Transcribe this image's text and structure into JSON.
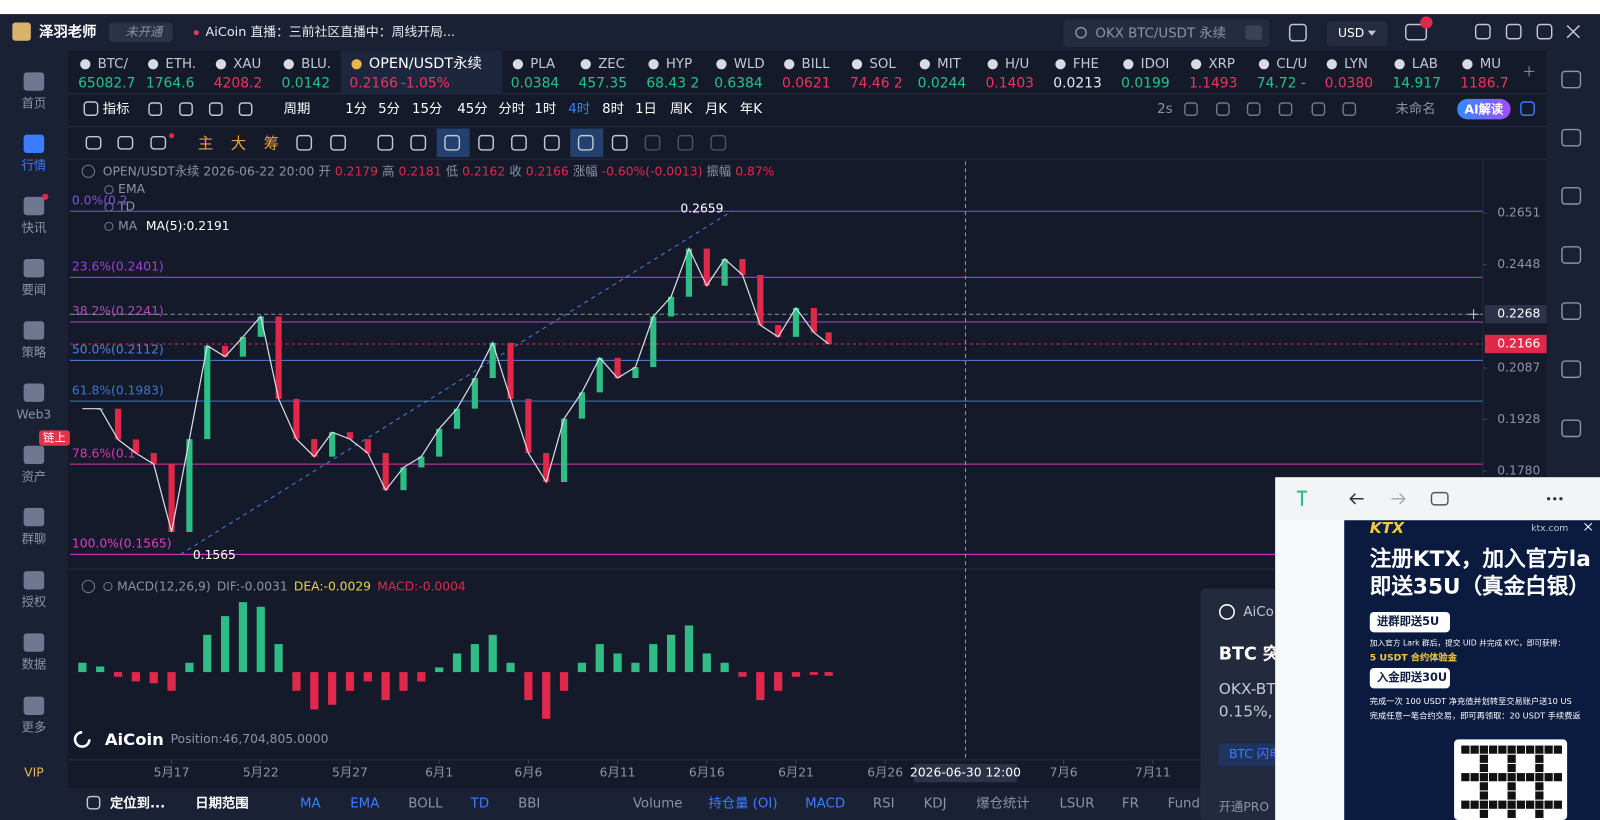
{
  "top_bar": {
    "user": "泽羽老师",
    "badge": "未开通",
    "live": "AiCoin 直播：三前社区直播中：周线开局...",
    "search": "OKX BTC/USDT 永续",
    "currency": "USD"
  },
  "tickers": [
    {
      "name": "BTC/",
      "price": "65082.7",
      "color": "#27c28a"
    },
    {
      "name": "ETH.",
      "price": "1764.6",
      "color": "#27c28a"
    },
    {
      "name": "XAU",
      "price": "4208.2",
      "color": "#f0345a"
    },
    {
      "name": "BLU.",
      "price": "0.0142",
      "color": "#27c28a"
    },
    {
      "name": "OPEN/USDT永续",
      "price": "0.2166",
      "change": "-1.05%",
      "color": "#f0345a",
      "active": true
    },
    {
      "name": "PLA",
      "price": "0.0384",
      "color": "#27c28a"
    },
    {
      "name": "ZEC",
      "price": "457.35",
      "color": "#27c28a"
    },
    {
      "name": "HYP",
      "price": "68.43 2",
      "color": "#27c28a"
    },
    {
      "name": "WLD",
      "price": "0.6384",
      "color": "#27c28a"
    },
    {
      "name": "BILL",
      "price": "0.0621",
      "color": "#f0345a"
    },
    {
      "name": "SOL",
      "price": "74.46 2",
      "color": "#f0345a"
    },
    {
      "name": "MIT",
      "price": "0.0244",
      "color": "#27c28a"
    },
    {
      "name": "H/U",
      "price": "0.1403",
      "color": "#f0345a"
    },
    {
      "name": "FHE",
      "price": "0.0213",
      "color": "#e8eaf0"
    },
    {
      "name": "IDOI",
      "price": "0.0199",
      "color": "#27c28a"
    },
    {
      "name": "XRP",
      "price": "1.1493",
      "color": "#f0345a"
    },
    {
      "name": "CL/U",
      "price": "74.72 -",
      "color": "#27c28a"
    },
    {
      "name": "LYN",
      "price": "0.0380",
      "color": "#f0345a"
    },
    {
      "name": "LAB",
      "price": "14.917",
      "color": "#27c28a"
    },
    {
      "name": "MU",
      "price": "1186.7",
      "color": "#f0345a"
    }
  ],
  "sidebar": {
    "items": [
      "首页",
      "行情",
      "快讯",
      "要闻",
      "策略",
      "Web3",
      "资产",
      "群聊",
      "授权",
      "数据",
      "更多",
      "VIP"
    ],
    "active": "行情",
    "badge": "链上"
  },
  "toolbar": {
    "indicator": "指标",
    "period": "周期",
    "intervals": [
      "1分",
      "5分",
      "15分",
      "45分",
      "分时",
      "1时",
      "4时",
      "8时",
      "1日",
      "周K",
      "月K",
      "年K"
    ],
    "active_interval": "4时",
    "refresh": "2s",
    "layout": "未命名",
    "ai": "AI解读"
  },
  "draw_tools": [
    "主",
    "大",
    "筹"
  ],
  "ohlc_info": [
    {
      "text": "OPEN/USDT永续 2026-06-22 20:00",
      "color": "#8b93a7"
    },
    {
      "text": "开",
      "color": "#8b93a7"
    },
    {
      "text": "0.2179",
      "color": "#e0294a"
    },
    {
      "text": "高",
      "color": "#8b93a7"
    },
    {
      "text": "0.2181",
      "color": "#e0294a"
    },
    {
      "text": "低",
      "color": "#8b93a7"
    },
    {
      "text": "0.2162",
      "color": "#e0294a"
    },
    {
      "text": "收",
      "color": "#8b93a7"
    },
    {
      "text": "0.2166",
      "color": "#e0294a"
    },
    {
      "text": "涨幅",
      "color": "#8b93a7"
    },
    {
      "text": "-0.60%(-0.0013)",
      "color": "#e0294a"
    },
    {
      "text": "振幅",
      "color": "#8b93a7"
    },
    {
      "text": "0.87%",
      "color": "#e0294a"
    }
  ],
  "overlays": [
    "EMA",
    "TD",
    "MA"
  ],
  "ma_value": "MA(5):0.2191",
  "macd_info": [
    {
      "text": "MACD(12,26,9)",
      "color": "#8b93a7"
    },
    {
      "text": "DIF:-0.0031",
      "color": "#8b93a7"
    },
    {
      "text": "DEA:-0.0029",
      "color": "#e8d44d"
    },
    {
      "text": "MACD:-0.0004",
      "color": "#e0294a"
    }
  ],
  "watermark": "AiCoin",
  "position": "Position:46,704,805.0000",
  "chart_data": {
    "type": "line",
    "log_scale": true,
    "color": "#d9dce3",
    "up_color": "#2ebd85",
    "down_color": "#e0294a",
    "x": [
      -5,
      -4,
      -3,
      -2,
      -1,
      0,
      1,
      2,
      3,
      4,
      5,
      6,
      7,
      8,
      9,
      10,
      11,
      12,
      13,
      14,
      15,
      16,
      17,
      18,
      19,
      20,
      21,
      22,
      23,
      24,
      25,
      26,
      27,
      28,
      29,
      30,
      31,
      32,
      33,
      34,
      35,
      36,
      36.83
    ],
    "values": [
      0.196,
      0.196,
      0.1869,
      0.183,
      0.1799,
      0.162,
      0.187,
      0.216,
      0.2124,
      0.219,
      0.226,
      0.199,
      0.187,
      0.182,
      0.189,
      0.187,
      0.183,
      0.1728,
      0.179,
      0.182,
      0.19,
      0.196,
      0.2055,
      0.217,
      0.199,
      0.183,
      0.175,
      0.193,
      0.201,
      0.212,
      0.2055,
      0.209,
      0.226,
      0.233,
      0.251,
      0.237,
      0.247,
      0.241,
      0.223,
      0.219,
      0.229,
      0.2205,
      0.2166
    ],
    "xlim": [
      -5.7,
      73.5
    ],
    "ylim": [
      0.1537,
      0.2873
    ],
    "xticks": [
      {
        "value": 0,
        "label": "5月17"
      },
      {
        "value": 5,
        "label": "5月22"
      },
      {
        "value": 10,
        "label": "5月27"
      },
      {
        "value": 15,
        "label": "6月1"
      },
      {
        "value": 20,
        "label": "6月6"
      },
      {
        "value": 25,
        "label": "6月11"
      },
      {
        "value": 30,
        "label": "6月16"
      },
      {
        "value": 35,
        "label": "6月21"
      },
      {
        "value": 40,
        "label": "6月26"
      },
      {
        "value": 50,
        "label": "7月6"
      },
      {
        "value": 55,
        "label": "7月11"
      }
    ],
    "yticks": [
      0.2651,
      0.2448,
      0.2087,
      0.1928,
      {
        "value": 0.178,
        "label": "0.1780"
      }
    ],
    "fib_levels": [
      {
        "label": "0.0%(0.2",
        "value": 0.2659,
        "color": "#7b55d6"
      },
      {
        "label": "23.6%(0.2401)",
        "value": 0.2401,
        "color": "#9a44d8"
      },
      {
        "label": "38.2%(0.2241)",
        "value": 0.2241,
        "color": "#b04bb8"
      },
      {
        "label": "50.0%(0.2112)",
        "value": 0.2112,
        "color": "#4f7fd8"
      },
      {
        "label": "61.8%(0.1983)",
        "value": 0.1983,
        "color": "#3f74c9"
      },
      {
        "label": "78.6%(0.1",
        "value": 0.1799,
        "color": "#d23aa8"
      },
      {
        "label": "100.0%(0.1565)",
        "value": 0.1565,
        "color": "#e03cbf"
      }
    ],
    "high_low": [
      {
        "x": 31.4,
        "value": 0.2659
      },
      {
        "x": 0.5,
        "value": 0.1565
      }
    ],
    "last_price": 0.2166,
    "crosshair": {
      "x": 44.5,
      "x_label": "2026-06-30 12:00",
      "value": 0.2268
    },
    "macd": {
      "values": [
        0.001,
        0.0006,
        -0.0005,
        -0.001,
        -0.0012,
        -0.002,
        0.001,
        0.004,
        0.006,
        0.0075,
        0.007,
        0.003,
        -0.002,
        -0.004,
        -0.0035,
        -0.002,
        -0.001,
        -0.003,
        -0.002,
        -0.001,
        0.0005,
        0.002,
        0.003,
        0.004,
        0.001,
        -0.003,
        -0.005,
        -0.002,
        0.001,
        0.003,
        0.002,
        0.001,
        0.003,
        0.004,
        0.005,
        0.002,
        0.001,
        -0.0005,
        -0.003,
        -0.002,
        -0.0005,
        -0.0003,
        -0.0004
      ],
      "ylim": [
        -0.0094,
        0.0106
      ]
    }
  },
  "bottom_bar": [
    {
      "text": "定位到...",
      "color": "#ffffff"
    },
    {
      "text": "日期范围",
      "color": "#ffffff"
    },
    {
      "text": "MA",
      "color": "#3d7bff"
    },
    {
      "text": "EMA",
      "color": "#3d7bff"
    },
    {
      "text": "BOLL",
      "color": "#8b93a7"
    },
    {
      "text": "TD",
      "color": "#3d7bff"
    },
    {
      "text": "BBI",
      "color": "#8b93a7"
    },
    {
      "text": "Volume",
      "color": "#8b93a7"
    },
    {
      "text": "持仓量 (OI)",
      "color": "#3d7bff"
    },
    {
      "text": "MACD",
      "color": "#3d7bff"
    },
    {
      "text": "RSI",
      "color": "#8b93a7"
    },
    {
      "text": "KDJ",
      "color": "#8b93a7"
    },
    {
      "text": "爆仓统计",
      "color": "#8b93a7"
    },
    {
      "text": "LSUR",
      "color": "#8b93a7"
    },
    {
      "text": "FR",
      "color": "#8b93a7"
    },
    {
      "text": "Fund",
      "color": "#8b93a7"
    }
  ],
  "notification": {
    "brand": "AiCo",
    "title": "BTC 突",
    "line1": "OKX-BT",
    "line2": "0.15%,",
    "button": "BTC 闪电",
    "footer": "开通PRO"
  },
  "ad": {
    "logo": "KTX",
    "site": "ktx.com",
    "title1": "注册KTX，加入官方la",
    "title2": "即送35U（真金白银）",
    "button1": "进群即送5U",
    "desc1": "加入官方 Lark 群后，提交 UID 并完成 KYC，即可获得：",
    "reward1": "5 USDT 合约体验金",
    "button2": "入金即送30U",
    "desc2": "完成一次 100 USDT 净充值并划转至交易账户送10 US",
    "desc3": "完成任意一笔合约交易，即可再领取：20 USDT 手续费返"
  }
}
